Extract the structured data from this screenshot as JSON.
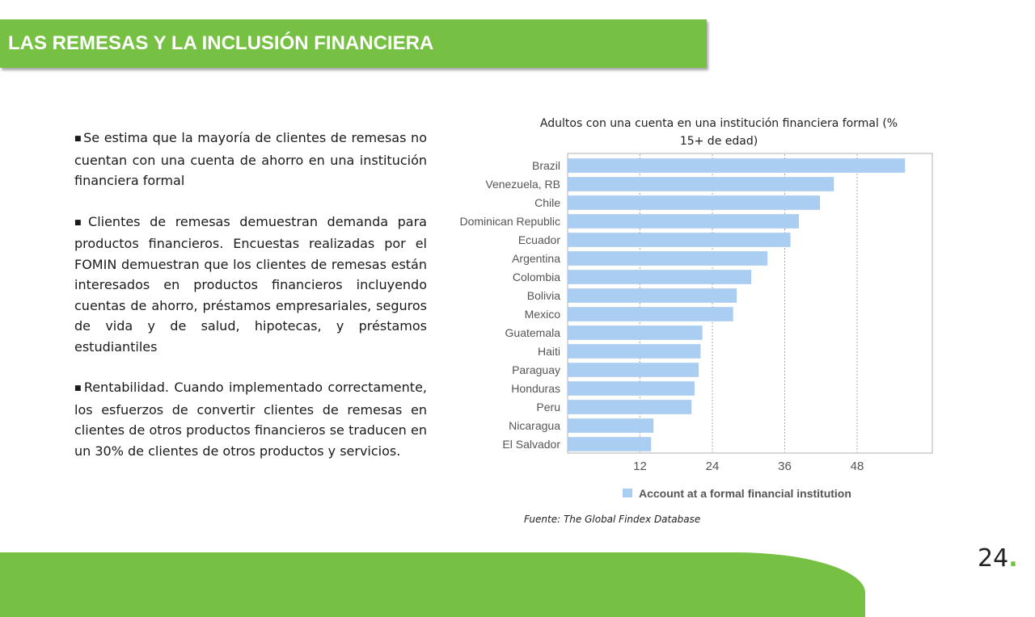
{
  "header": {
    "title": "LAS REMESAS Y LA INCLUSIÓN FINANCIERA"
  },
  "bullets": [
    "Se estima  que la mayoría de clientes de remesas no cuentan con una cuenta de ahorro en una institución financiera formal",
    "Clientes de remesas demuestran demanda para productos financieros.  Encuestas realizadas por el FOMIN demuestran que los clientes de remesas están interesados en productos financieros incluyendo cuentas de ahorro, préstamos empresariales,  seguros de vida y  de salud, hipotecas,  y préstamos estudiantiles",
    "Rentabilidad. Cuando implementado correctamente,    los esfuerzos  de convertir clientes de remesas en clientes de otros productos financieros se traducen en un 30% de clientes de otros productos y  servicios."
  ],
  "bullet_marker": "■",
  "chart_title": "Adultos con una cuenta en una institución financiera formal  (% 15+ de edad)",
  "source": "Fuente: The Global Findex Database",
  "page": {
    "number": "24",
    "dot": "."
  },
  "colors": {
    "accent_green": "#76c043",
    "bar_fill": "#aacdf2",
    "bar_stroke": "#9cc3ec"
  },
  "chart_data": {
    "type": "bar",
    "orientation": "horizontal",
    "categories": [
      "Brazil",
      "Venezuela, RB",
      "Chile",
      "Dominican Republic",
      "Ecuador",
      "Argentina",
      "Colombia",
      "Bolivia",
      "Mexico",
      "Guatemala",
      "Haiti",
      "Paraguay",
      "Honduras",
      "Peru",
      "Nicaragua",
      "El Salvador"
    ],
    "series": [
      {
        "name": "Account at a formal financial institution",
        "values": [
          55.9,
          44.1,
          41.8,
          38.3,
          36.9,
          33.1,
          30.4,
          28.0,
          27.4,
          22.3,
          22.0,
          21.7,
          21.0,
          20.5,
          14.2,
          13.8
        ]
      }
    ],
    "xticks": [
      12,
      24,
      36,
      48
    ],
    "xlim": [
      0,
      60
    ],
    "grid": "vertical dashed",
    "legend": "bottom"
  }
}
